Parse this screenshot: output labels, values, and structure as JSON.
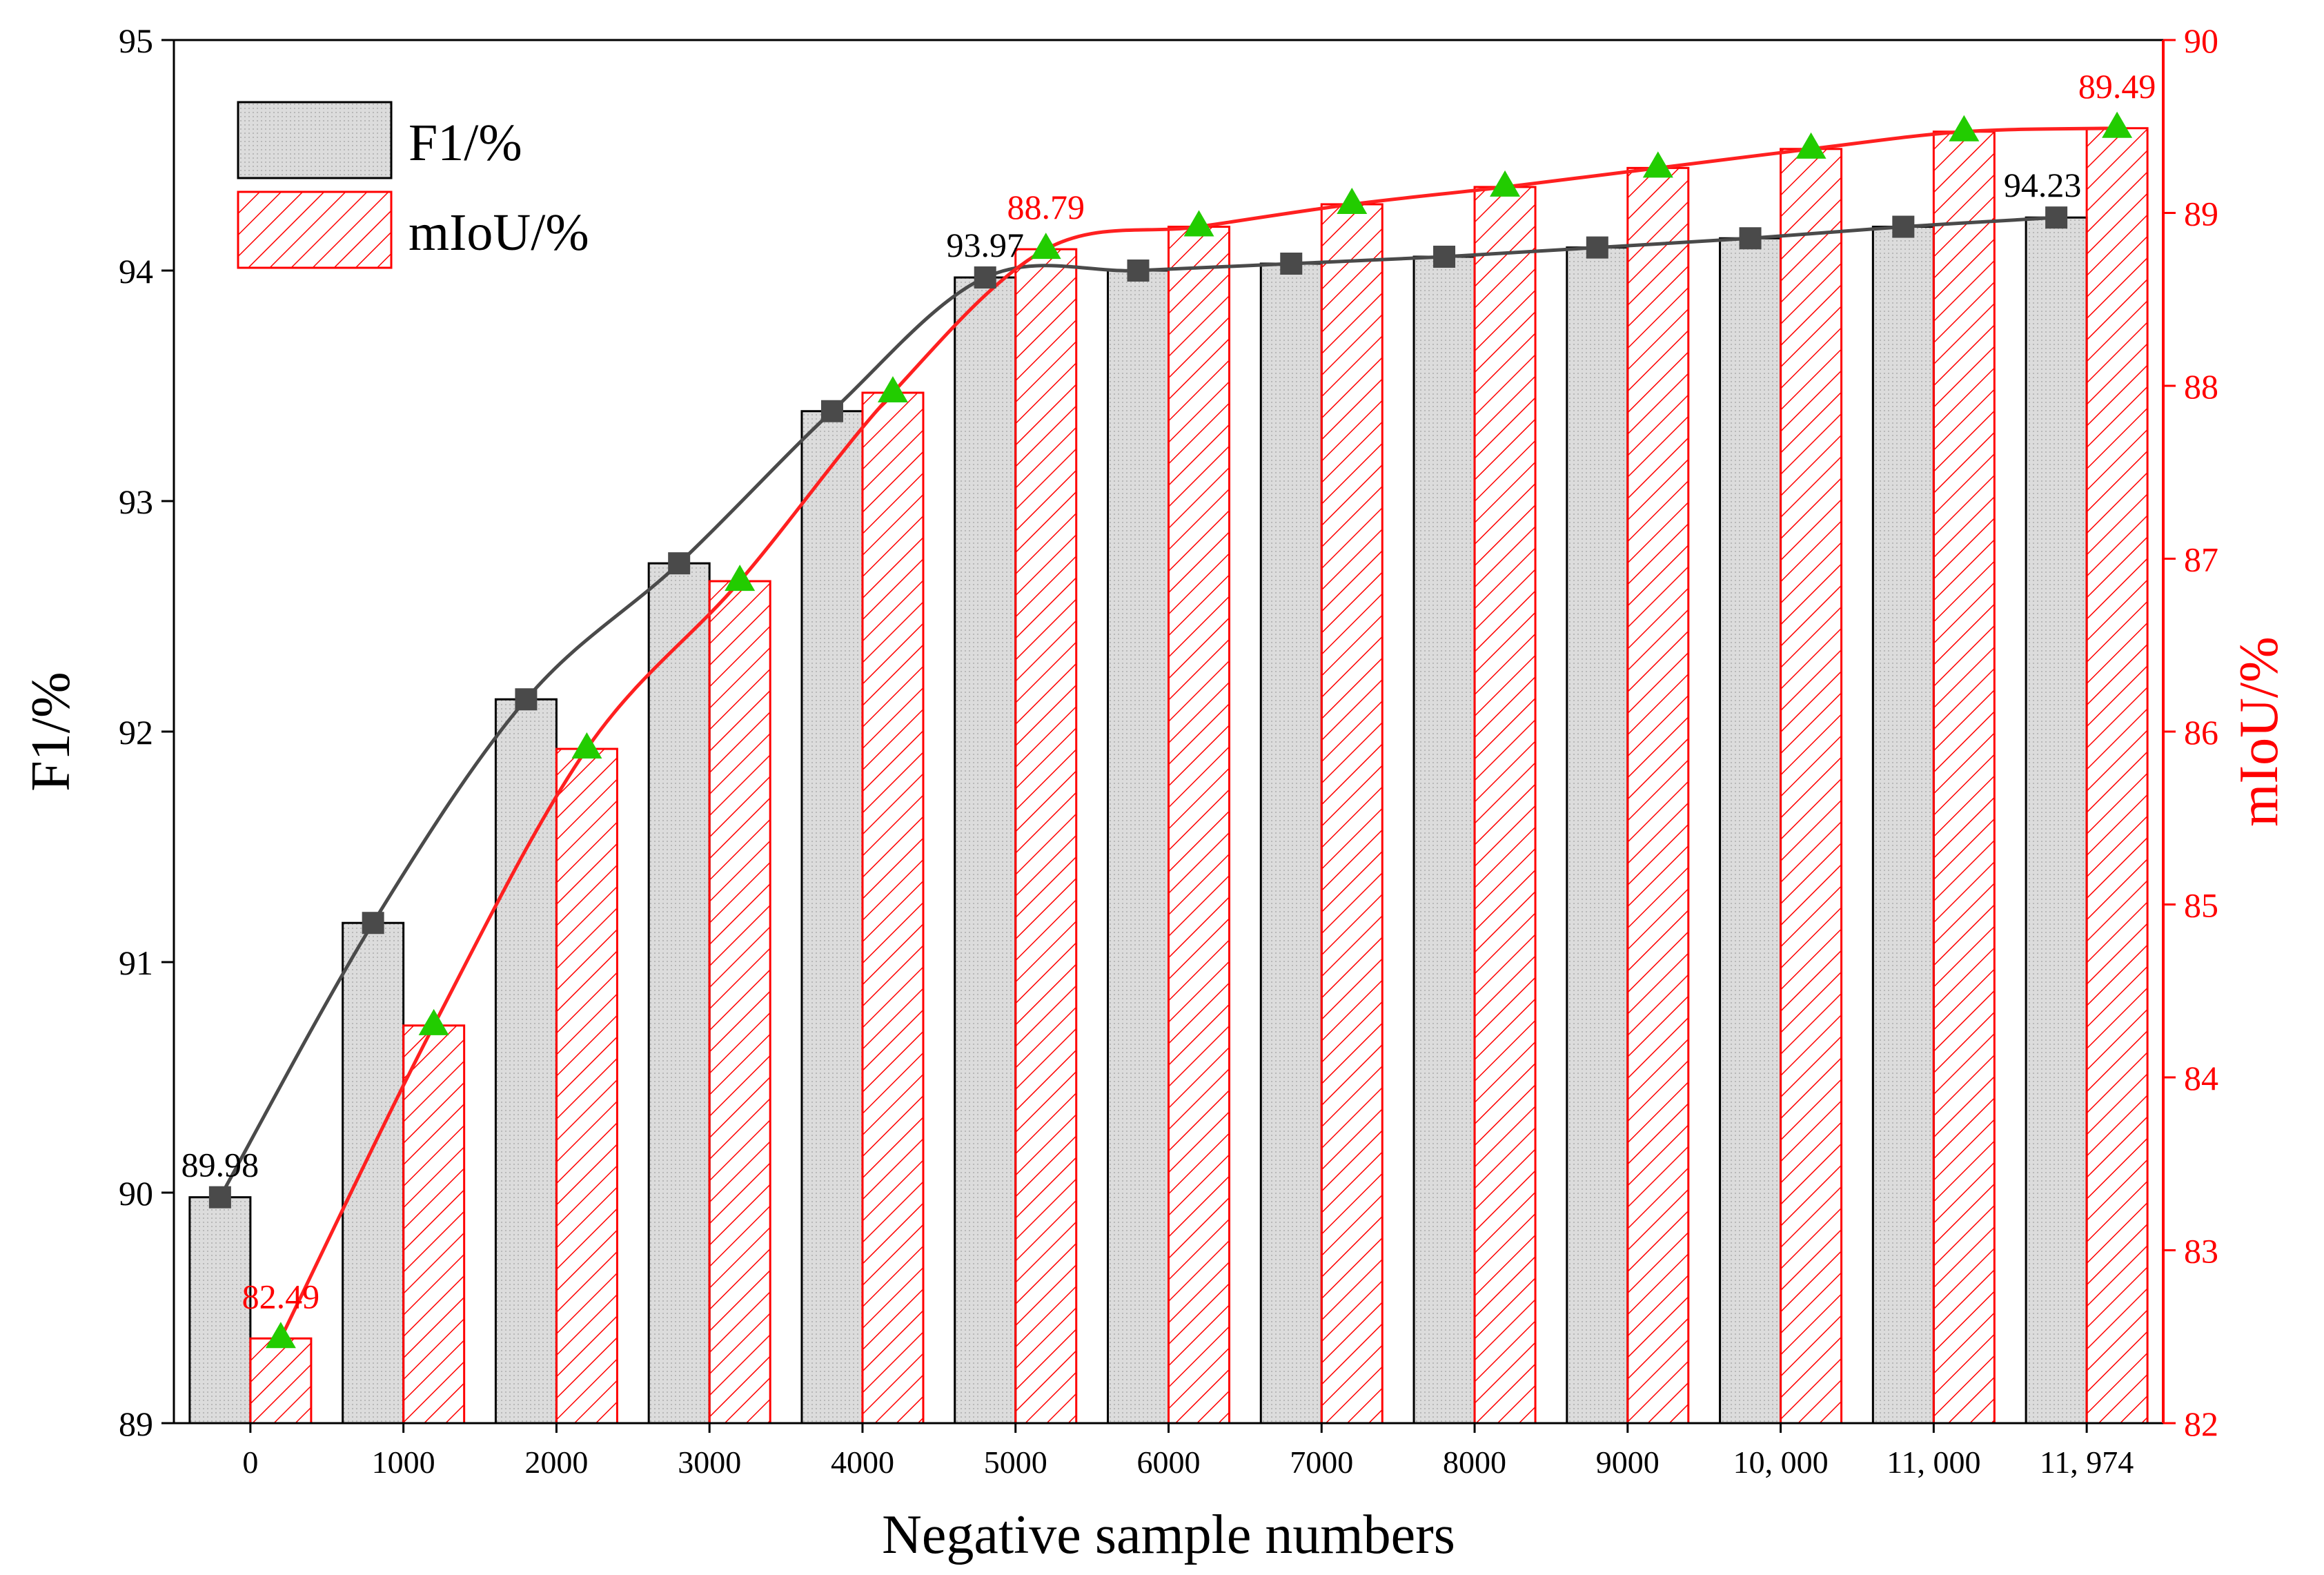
{
  "chart_data": {
    "type": "bar",
    "xlabel": "Negative sample numbers",
    "categories": [
      "0",
      "1000",
      "2000",
      "3000",
      "4000",
      "5000",
      "6000",
      "7000",
      "8000",
      "9000",
      "10, 000",
      "11, 000",
      "11, 974"
    ],
    "left_axis": {
      "label": "F1/%",
      "ylim": [
        89,
        95
      ],
      "ticks": [
        89,
        90,
        91,
        92,
        93,
        94,
        95
      ]
    },
    "right_axis": {
      "label": "mIoU/%",
      "ylim": [
        82,
        90
      ],
      "ticks": [
        82,
        83,
        84,
        85,
        86,
        87,
        88,
        89,
        90
      ]
    },
    "series": [
      {
        "name": "F1/%",
        "axis": "left",
        "values": [
          89.98,
          91.17,
          92.14,
          92.73,
          93.39,
          93.97,
          94.0,
          94.03,
          94.06,
          94.1,
          94.14,
          94.19,
          94.23
        ],
        "bar_fill": "#d8d8d8",
        "bar_stroke": "#000000",
        "line_color": "#4a4a4a",
        "marker": "square",
        "marker_color": "#4a4a4a"
      },
      {
        "name": "mIoU/%",
        "axis": "right",
        "values": [
          82.49,
          84.3,
          85.9,
          86.87,
          87.96,
          88.79,
          88.92,
          89.05,
          89.15,
          89.26,
          89.37,
          89.47,
          89.49
        ],
        "bar_fill": "hatch",
        "bar_stroke": "#ff0000",
        "line_color": "#ff2020",
        "marker": "triangle",
        "marker_color": "#22cc00"
      }
    ],
    "annotations": [
      {
        "series": "F1/%",
        "index": 0,
        "text": "89.98",
        "color": "#000000"
      },
      {
        "series": "F1/%",
        "index": 5,
        "text": "93.97",
        "color": "#000000"
      },
      {
        "series": "F1/%",
        "index": 12,
        "text": "94.23",
        "color": "#000000"
      },
      {
        "series": "mIoU/%",
        "index": 0,
        "text": "82.49",
        "color": "#ff0000"
      },
      {
        "series": "mIoU/%",
        "index": 5,
        "text": "88.79",
        "color": "#ff0000"
      },
      {
        "series": "mIoU/%",
        "index": 12,
        "text": "89.49",
        "color": "#ff0000"
      }
    ],
    "legend": {
      "position": "top-left",
      "entries": [
        "F1/%",
        "mIoU/%"
      ]
    },
    "colors": {
      "left_axis": "#000000",
      "right_axis": "#ff0000"
    }
  }
}
